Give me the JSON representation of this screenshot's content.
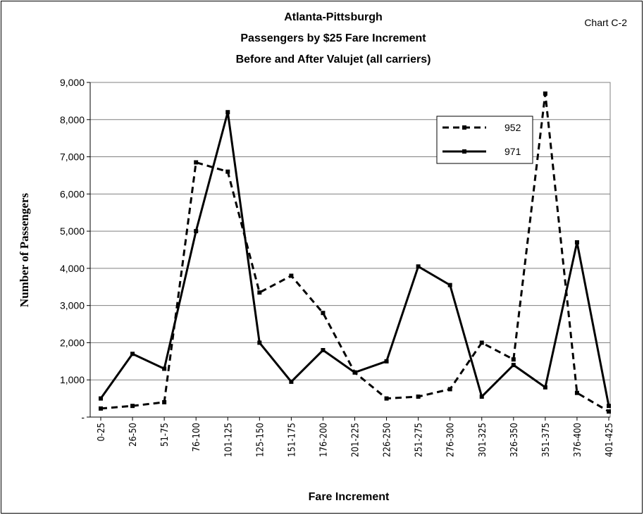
{
  "chart_data": {
    "type": "line",
    "title": [
      "Atlanta-Pittsburgh",
      "Passengers by $25 Fare Increment",
      "Before and After Valujet (all carriers)"
    ],
    "annotation": "Chart C-2",
    "x_label": "Fare Increment",
    "y_label": "Number of Passengers",
    "categories": [
      "0-25",
      "26-50",
      "51-75",
      "76-100",
      "101-125",
      "125-150",
      "151-175",
      "176-200",
      "201-225",
      "226-250",
      "251-275",
      "276-300",
      "301-325",
      "326-350",
      "351-375",
      "376-400",
      "401-425"
    ],
    "series": [
      {
        "name": "952",
        "color": "#000000",
        "line_style": "dashed",
        "values": [
          230,
          300,
          400,
          6850,
          6600,
          3350,
          3800,
          2800,
          1200,
          500,
          550,
          750,
          2000,
          1550,
          8700,
          650,
          150
        ]
      },
      {
        "name": "971",
        "color": "#000000",
        "line_style": "solid",
        "values": [
          500,
          1700,
          1300,
          5000,
          8200,
          2000,
          950,
          1800,
          1200,
          1500,
          4050,
          3550,
          550,
          1400,
          800,
          4700,
          300
        ]
      }
    ],
    "ylim": [
      0,
      9000
    ],
    "yticks": [
      {
        "value": 0,
        "label": "-"
      },
      {
        "value": 1000,
        "label": "1,000"
      },
      {
        "value": 2000,
        "label": "2,000"
      },
      {
        "value": 3000,
        "label": "3,000"
      },
      {
        "value": 4000,
        "label": "4,000"
      },
      {
        "value": 5000,
        "label": "5,000"
      },
      {
        "value": 6000,
        "label": "6,000"
      },
      {
        "value": 7000,
        "label": "7,000"
      },
      {
        "value": 8000,
        "label": "8,000"
      },
      {
        "value": 9000,
        "label": "9,000"
      }
    ],
    "grid": true
  }
}
